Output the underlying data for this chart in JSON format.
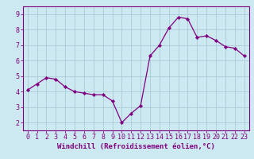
{
  "x": [
    0,
    1,
    2,
    3,
    4,
    5,
    6,
    7,
    8,
    9,
    10,
    11,
    12,
    13,
    14,
    15,
    16,
    17,
    18,
    19,
    20,
    21,
    22,
    23
  ],
  "y": [
    4.1,
    4.5,
    4.9,
    4.8,
    4.3,
    4.0,
    3.9,
    3.8,
    3.8,
    3.4,
    2.0,
    2.6,
    3.1,
    6.3,
    7.0,
    8.1,
    8.8,
    8.7,
    7.5,
    7.6,
    7.3,
    6.9,
    6.8,
    6.3
  ],
  "line_color": "#800080",
  "marker": "D",
  "marker_size": 2.2,
  "bg_color": "#cce8f0",
  "grid_color": "#aaccd8",
  "xlabel": "Windchill (Refroidissement éolien,°C)",
  "xlim": [
    -0.5,
    23.5
  ],
  "ylim": [
    1.5,
    9.5
  ],
  "yticks": [
    2,
    3,
    4,
    5,
    6,
    7,
    8,
    9
  ],
  "xticks": [
    0,
    1,
    2,
    3,
    4,
    5,
    6,
    7,
    8,
    9,
    10,
    11,
    12,
    13,
    14,
    15,
    16,
    17,
    18,
    19,
    20,
    21,
    22,
    23
  ],
  "tick_color": "#800080",
  "label_color": "#800080",
  "axis_color": "#800080",
  "xlabel_fontsize": 6.5,
  "tick_fontsize": 6.0
}
